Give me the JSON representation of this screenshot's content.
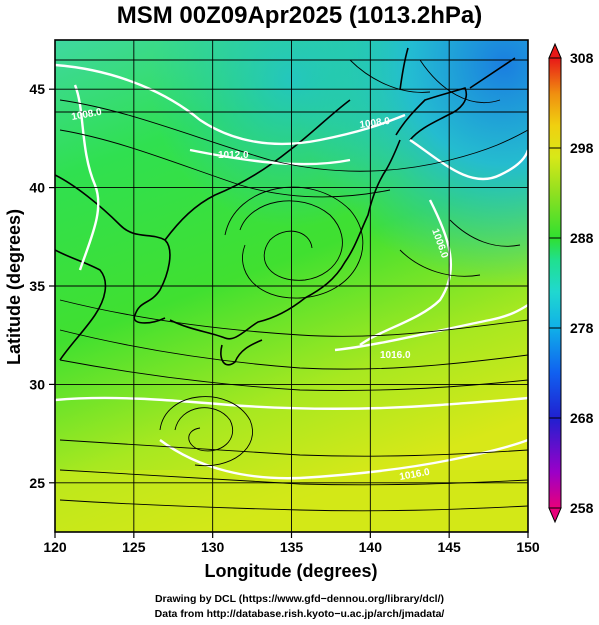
{
  "title": "MSM 00Z09Apr2025 (1013.2hPa)",
  "map": {
    "region": "Japan and surrounding seas",
    "lon_range": [
      120,
      150
    ],
    "lat_range": [
      22.5,
      47.5
    ],
    "xlabel": "Longitude (degrees)",
    "ylabel": "Latitude  (degrees)",
    "x_ticks": [
      "120",
      "125",
      "130",
      "135",
      "140",
      "145",
      "150"
    ],
    "y_ticks": [
      "25",
      "30",
      "35",
      "40",
      "45"
    ],
    "x_tick_values": [
      120,
      125,
      130,
      135,
      140,
      145,
      150
    ],
    "y_tick_values": [
      25,
      30,
      35,
      40,
      45
    ],
    "field": "temperature (K) with wind streamlines and isobars",
    "grid": true
  },
  "isobar_labels": [
    "1008.0",
    "1008.0",
    "1012.0",
    "1006.0",
    "1016.0",
    "1016.0"
  ],
  "colorbar": {
    "min": 258,
    "max": 308,
    "tick_labels": [
      "308",
      "298",
      "288",
      "278",
      "268",
      "258"
    ],
    "tick_values": [
      308,
      298,
      288,
      278,
      268,
      258
    ],
    "colors": [
      "#e8007a",
      "#9b00c8",
      "#2020d0",
      "#1060f0",
      "#10b0e8",
      "#20d8d0",
      "#20e090",
      "#30e030",
      "#90e020",
      "#d8e818",
      "#f0d010",
      "#f09010",
      "#f05010",
      "#e81818"
    ]
  },
  "credits": {
    "line1": "Drawing by DCL (https://www.gfd−dennou.org/library/dcl/)",
    "line2": "Data from http://database.rish.kyoto−u.ac.jp/arch/jmadata/"
  }
}
